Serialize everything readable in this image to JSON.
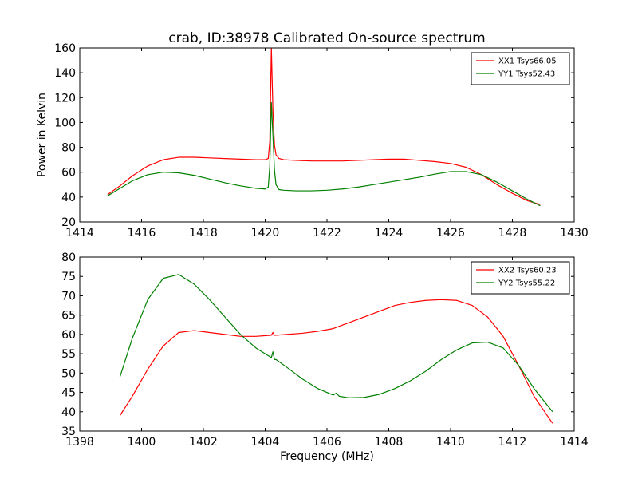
{
  "chart_data": [
    {
      "type": "line",
      "title": "crab, ID:38978 Calibrated On-source spectrum",
      "xlabel": "",
      "ylabel": "Power in Kelvin",
      "xlim": [
        1414,
        1430
      ],
      "ylim": [
        20,
        160
      ],
      "xticks": [
        1414,
        1416,
        1418,
        1420,
        1422,
        1424,
        1426,
        1428,
        1430
      ],
      "yticks": [
        20,
        40,
        60,
        80,
        100,
        120,
        140,
        160
      ],
      "legend": "top-right",
      "grid": false,
      "series": [
        {
          "name": "XX1 Tsys66.05",
          "color": "#ff0000",
          "x": [
            1414.9,
            1415.3,
            1415.7,
            1416.2,
            1416.7,
            1417.2,
            1417.7,
            1418.2,
            1418.7,
            1419.2,
            1419.7,
            1420.0,
            1420.1,
            1420.15,
            1420.2,
            1420.25,
            1420.3,
            1420.35,
            1420.45,
            1420.6,
            1421.0,
            1421.5,
            1422.0,
            1422.5,
            1423.0,
            1423.5,
            1424.0,
            1424.5,
            1425.0,
            1425.5,
            1426.0,
            1426.5,
            1427.0,
            1427.5,
            1428.0,
            1428.5,
            1428.9
          ],
          "y": [
            42,
            49,
            57,
            65,
            70,
            72,
            72,
            71.5,
            71,
            70.5,
            70,
            70,
            71,
            85,
            160,
            110,
            82,
            74,
            71,
            70,
            69.5,
            69,
            69,
            69,
            69.5,
            70,
            70.5,
            70.5,
            69.5,
            68.5,
            67,
            64,
            58,
            50,
            43,
            37,
            34
          ]
        },
        {
          "name": "YY1 Tsys52.43",
          "color": "#008000",
          "x": [
            1414.9,
            1415.3,
            1415.7,
            1416.2,
            1416.7,
            1417.2,
            1417.7,
            1418.2,
            1418.7,
            1419.2,
            1419.7,
            1420.0,
            1420.1,
            1420.15,
            1420.2,
            1420.25,
            1420.3,
            1420.35,
            1420.45,
            1420.6,
            1421.0,
            1421.5,
            1422.0,
            1422.5,
            1423.0,
            1423.5,
            1424.0,
            1424.5,
            1425.0,
            1425.5,
            1426.0,
            1426.5,
            1427.0,
            1427.5,
            1428.0,
            1428.5,
            1428.9
          ],
          "y": [
            41,
            47,
            53,
            58,
            60,
            59.5,
            57.5,
            54.5,
            51.5,
            49,
            47,
            46.5,
            48,
            65,
            116,
            90,
            62,
            50,
            46,
            45.5,
            45,
            45,
            45.5,
            46.5,
            48,
            50,
            52,
            54,
            56,
            58.5,
            60.5,
            60.5,
            58,
            52,
            45,
            38,
            33
          ]
        }
      ]
    },
    {
      "type": "line",
      "title": "",
      "xlabel": "Frequency (MHz)",
      "ylabel": "",
      "xlim": [
        1398,
        1414
      ],
      "ylim": [
        35,
        80
      ],
      "xticks": [
        1398,
        1400,
        1402,
        1404,
        1406,
        1408,
        1410,
        1412,
        1414
      ],
      "yticks": [
        35,
        40,
        45,
        50,
        55,
        60,
        65,
        70,
        75,
        80
      ],
      "legend": "top-right",
      "grid": false,
      "series": [
        {
          "name": "XX2 Tsys60.23",
          "color": "#ff0000",
          "x": [
            1399.3,
            1399.7,
            1400.2,
            1400.7,
            1401.2,
            1401.7,
            1402.2,
            1402.7,
            1403.2,
            1403.7,
            1404.2,
            1404.25,
            1404.3,
            1404.35,
            1404.7,
            1405.2,
            1405.7,
            1406.2,
            1406.7,
            1407.2,
            1407.7,
            1408.2,
            1408.7,
            1409.2,
            1409.7,
            1410.2,
            1410.7,
            1411.2,
            1411.7,
            1412.2,
            1412.7,
            1413.3
          ],
          "y": [
            39,
            44,
            51,
            57,
            60.5,
            61,
            60.5,
            60,
            59.5,
            59.5,
            59.8,
            60.5,
            59.8,
            59.8,
            60,
            60.3,
            60.8,
            61.5,
            63,
            64.5,
            66,
            67.5,
            68.3,
            68.8,
            69,
            68.8,
            67.5,
            64.5,
            59.5,
            52,
            44,
            37
          ]
        },
        {
          "name": "YY2 Tsys55.22",
          "color": "#008000",
          "x": [
            1399.3,
            1399.7,
            1400.2,
            1400.7,
            1401.2,
            1401.7,
            1402.2,
            1402.7,
            1403.2,
            1403.7,
            1404.2,
            1404.25,
            1404.3,
            1404.35,
            1404.7,
            1405.2,
            1405.7,
            1406.2,
            1406.3,
            1406.4,
            1406.7,
            1407.2,
            1407.7,
            1408.2,
            1408.7,
            1409.2,
            1409.7,
            1410.2,
            1410.7,
            1411.2,
            1411.7,
            1412.2,
            1412.7,
            1413.3
          ],
          "y": [
            49,
            59,
            69,
            74.5,
            75.5,
            73,
            69,
            64.5,
            60,
            56.5,
            54,
            55.5,
            53.5,
            53.5,
            51.5,
            48.5,
            46,
            44.3,
            44.8,
            44,
            43.6,
            43.7,
            44.5,
            46,
            48,
            50.5,
            53.5,
            56,
            57.8,
            58,
            56.5,
            52,
            46,
            40
          ]
        }
      ]
    }
  ]
}
